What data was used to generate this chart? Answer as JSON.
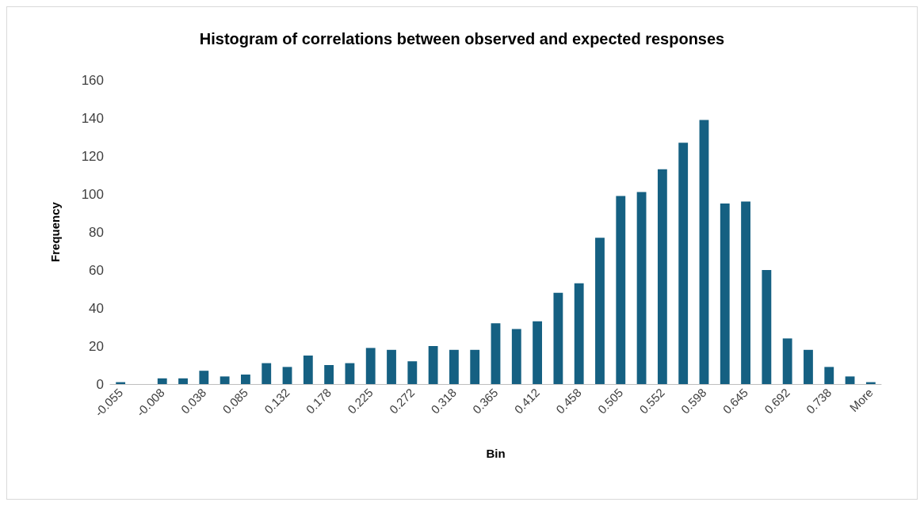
{
  "chart_data": {
    "type": "bar",
    "title": "Histogram of correlations between observed and expected responses",
    "xlabel": "Bin",
    "ylabel": "Frequency",
    "categories": [
      "-0.055",
      null,
      "-0.008",
      null,
      "0.038",
      null,
      "0.085",
      null,
      "0.132",
      null,
      "0.178",
      null,
      "0.225",
      null,
      "0.272",
      null,
      "0.318",
      null,
      "0.365",
      null,
      "0.412",
      null,
      "0.458",
      null,
      "0.505",
      null,
      "0.552",
      null,
      "0.598",
      null,
      "0.645",
      null,
      "0.692",
      null,
      "0.738",
      null,
      "More"
    ],
    "values": [
      1,
      0,
      3,
      3,
      7,
      4,
      5,
      11,
      9,
      15,
      10,
      11,
      19,
      18,
      12,
      20,
      18,
      18,
      32,
      29,
      33,
      48,
      53,
      77,
      99,
      101,
      113,
      127,
      139,
      95,
      96,
      60,
      24,
      18,
      9,
      4,
      1
    ],
    "color": "#156082",
    "ylim": [
      0,
      160
    ],
    "yticks": [
      0,
      20,
      40,
      60,
      80,
      100,
      120,
      140,
      160
    ],
    "grid": false
  }
}
